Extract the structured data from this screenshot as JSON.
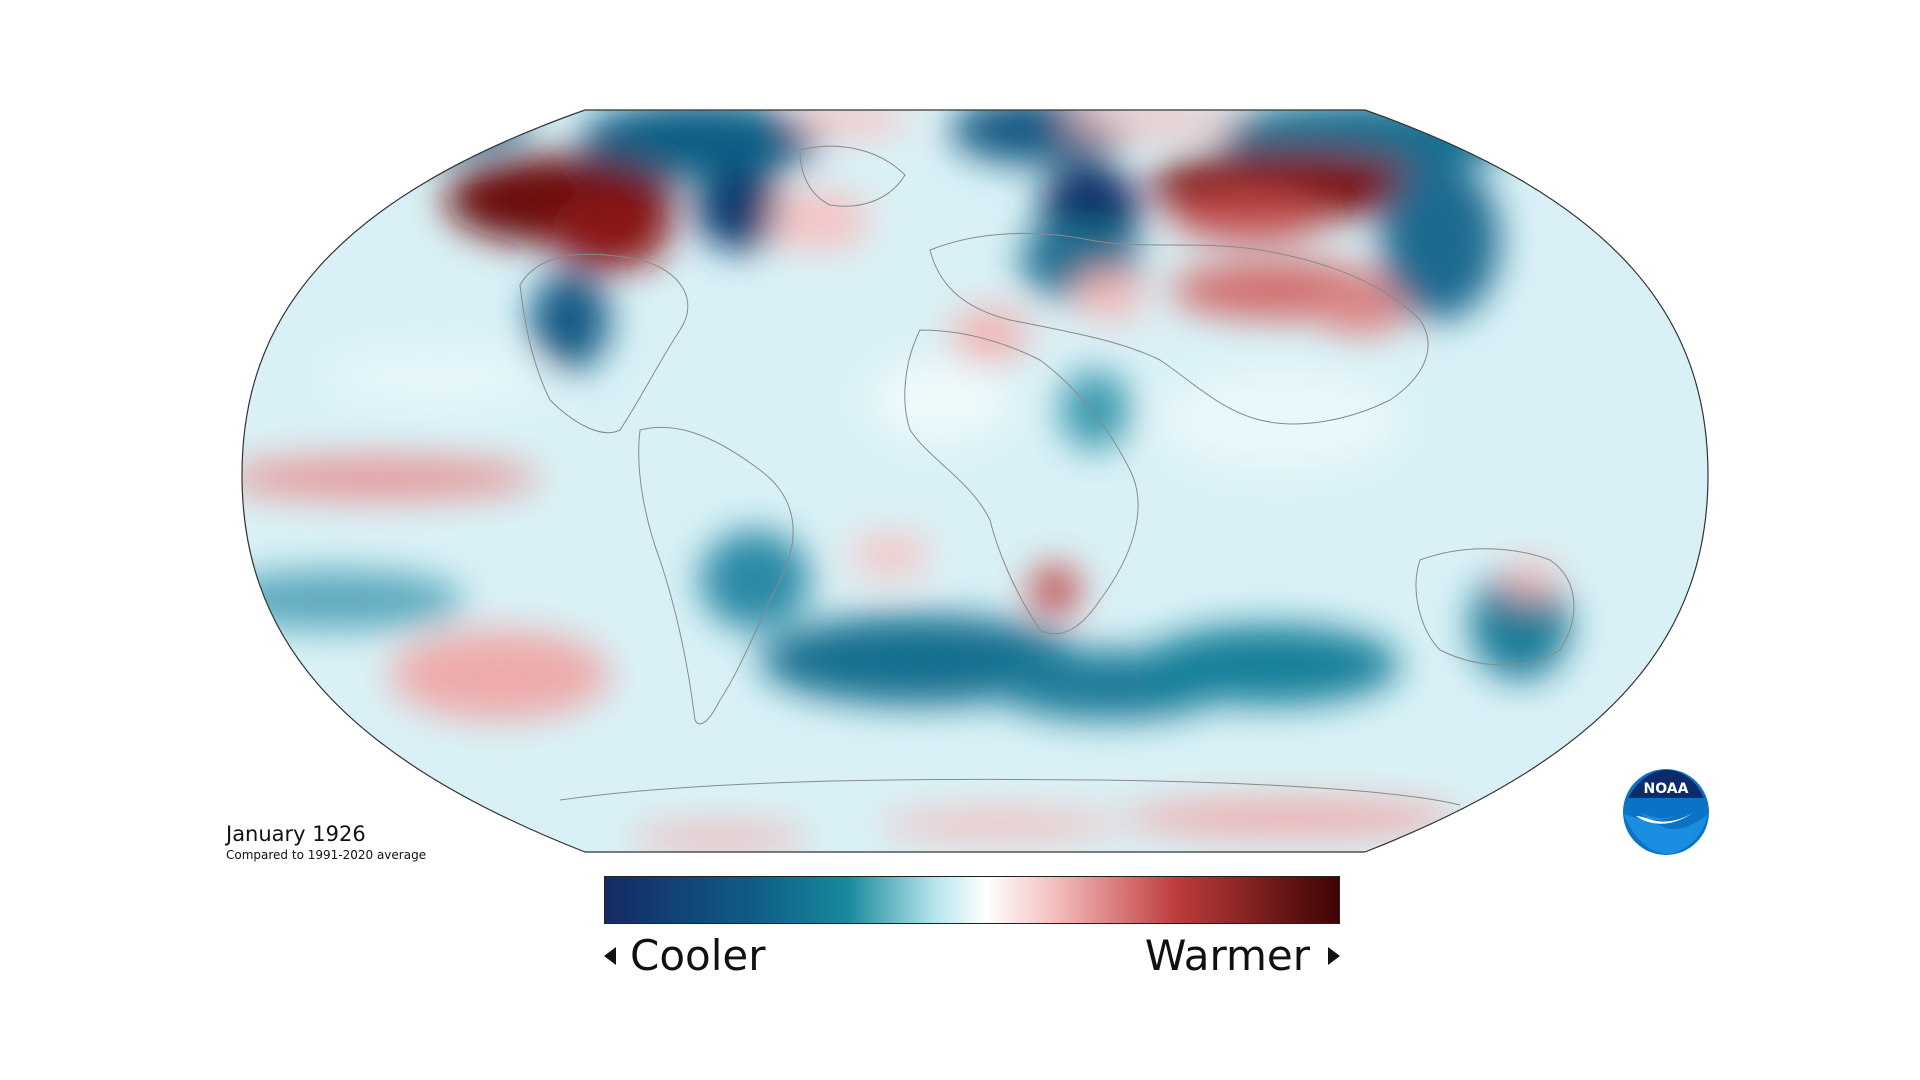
{
  "map": {
    "projection": "Robinson",
    "caption_title": "January 1926",
    "caption_subtitle": "Compared to 1991-2020 average"
  },
  "legend": {
    "cooler_label": "Cooler",
    "warmer_label": "Warmer",
    "colors": [
      "#142a63",
      "#0f6d8c",
      "#a9e2e9",
      "#ffffff",
      "#efa7a7",
      "#b53131",
      "#4a0404"
    ]
  },
  "palette": {
    "background_ocean": "#dff3f7",
    "deep_cool": "#1a3a6e",
    "cool": "#1f7f9c",
    "light_cool": "#a9e2e9",
    "neutral": "#ffffff",
    "light_warm": "#f2b6b6",
    "warm": "#b53131",
    "deep_warm": "#5a0808"
  },
  "logo": {
    "text": "NOAA",
    "icon": "noaa-logo-icon"
  }
}
